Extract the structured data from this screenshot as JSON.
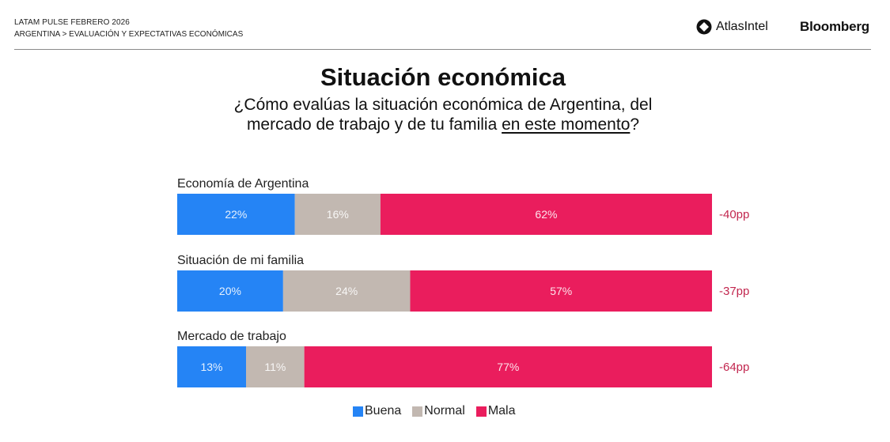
{
  "header": {
    "line1": "LATAM PULSE FEBRERO 2026",
    "line2": "ARGENTINA > EVALUACIÓN Y EXPECTATIVAS ECONÓMICAS",
    "logo_atlas": "AtlasIntel",
    "logo_bloomberg": "Bloomberg"
  },
  "title": "Situación económica",
  "subtitle": {
    "line1": "¿Cómo evalúas la situación económica de Argentina, del",
    "line2_prefix": "mercado de trabajo y de tu familia ",
    "line2_underlined": "en este momento",
    "line2_suffix": "?"
  },
  "colors": {
    "buena": "#2584F5",
    "normal": "#C2B8B1",
    "mala": "#EA1D5D",
    "net_text": "#C2274F"
  },
  "chart_data": {
    "type": "bar",
    "orientation": "horizontal-stacked-100",
    "title": "Situación económica",
    "categories": [
      "Economía de Argentina",
      "Situación de mi familia",
      "Mercado de trabajo"
    ],
    "series": [
      {
        "name": "Buena",
        "values": [
          22,
          20,
          13
        ]
      },
      {
        "name": "Normal",
        "values": [
          16,
          24,
          11
        ]
      },
      {
        "name": "Mala",
        "values": [
          62,
          57,
          77
        ]
      }
    ],
    "net_labels": [
      "-40pp",
      "-37pp",
      "-64pp"
    ],
    "value_suffix": "%",
    "xlim": [
      0,
      100
    ],
    "legend": [
      "Buena",
      "Normal",
      "Mala"
    ],
    "legend_position": "bottom-center",
    "grid": false
  }
}
